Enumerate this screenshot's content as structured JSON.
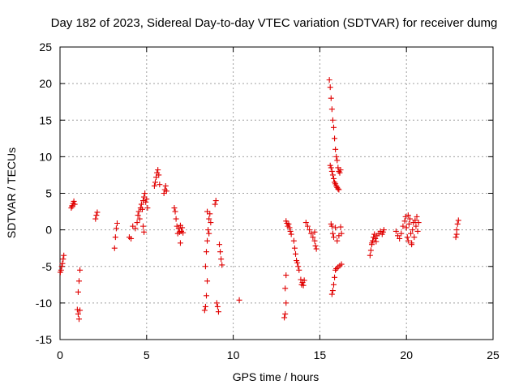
{
  "chart_data": {
    "type": "scatter",
    "title": "Day 182 of 2023, Sidereal Day-to-day VTEC variation (SDTVAR) for receiver dumg",
    "xlabel": "GPS time / hours",
    "ylabel": "SDTVAR / TECUs",
    "xlim": [
      0,
      25
    ],
    "ylim": [
      -15,
      25
    ],
    "xticks": [
      "0",
      "5",
      "10",
      "15",
      "20",
      "25"
    ],
    "yticks": [
      "-15",
      "-10",
      "-5",
      "0",
      "5",
      "10",
      "15",
      "20",
      "25"
    ],
    "grid": true,
    "marker": "plus",
    "color": "#e00000",
    "series": [
      {
        "name": "SDTVAR",
        "points": [
          [
            0.02,
            -5.8
          ],
          [
            0.06,
            -5.5
          ],
          [
            0.1,
            -5.0
          ],
          [
            0.14,
            -4.6
          ],
          [
            0.18,
            -4.0
          ],
          [
            0.22,
            -3.5
          ],
          [
            0.65,
            3.0
          ],
          [
            0.7,
            3.3
          ],
          [
            0.75,
            3.6
          ],
          [
            0.8,
            3.9
          ],
          [
            0.85,
            3.5
          ],
          [
            0.7,
            3.2
          ],
          [
            1.0,
            -10.9
          ],
          [
            1.05,
            -11.5
          ],
          [
            1.1,
            -12.2
          ],
          [
            1.15,
            -11.0
          ],
          [
            1.05,
            -8.5
          ],
          [
            1.1,
            -7.0
          ],
          [
            1.15,
            -5.5
          ],
          [
            2.05,
            1.5
          ],
          [
            2.1,
            2.0
          ],
          [
            2.15,
            2.4
          ],
          [
            3.15,
            -2.5
          ],
          [
            3.2,
            -1.0
          ],
          [
            3.25,
            0.2
          ],
          [
            3.3,
            0.9
          ],
          [
            4.0,
            -1.0
          ],
          [
            4.1,
            -1.2
          ],
          [
            4.2,
            0.5
          ],
          [
            4.35,
            0.2
          ],
          [
            4.45,
            1.0
          ],
          [
            4.5,
            2.0
          ],
          [
            4.55,
            2.5
          ],
          [
            4.6,
            1.5
          ],
          [
            4.65,
            3.0
          ],
          [
            4.7,
            3.5
          ],
          [
            4.75,
            2.8
          ],
          [
            4.8,
            4.0
          ],
          [
            4.85,
            4.5
          ],
          [
            4.9,
            5.0
          ],
          [
            4.95,
            3.8
          ],
          [
            5.0,
            4.2
          ],
          [
            5.05,
            3.0
          ],
          [
            4.8,
            0.5
          ],
          [
            4.85,
            -0.3
          ],
          [
            5.45,
            6.0
          ],
          [
            5.5,
            6.5
          ],
          [
            5.55,
            7.2
          ],
          [
            5.6,
            7.8
          ],
          [
            5.65,
            8.2
          ],
          [
            5.7,
            7.5
          ],
          [
            5.75,
            6.2
          ],
          [
            6.0,
            5.0
          ],
          [
            6.05,
            5.5
          ],
          [
            6.1,
            6.0
          ],
          [
            6.15,
            5.3
          ],
          [
            6.6,
            3.0
          ],
          [
            6.65,
            2.5
          ],
          [
            6.7,
            1.5
          ],
          [
            6.75,
            0.5
          ],
          [
            6.8,
            -0.5
          ],
          [
            6.85,
            0.2
          ],
          [
            6.9,
            -0.3
          ],
          [
            6.95,
            0.6
          ],
          [
            7.0,
            -0.2
          ],
          [
            7.05,
            0.3
          ],
          [
            7.1,
            -0.4
          ],
          [
            6.95,
            -1.8
          ],
          [
            8.35,
            -11.0
          ],
          [
            8.4,
            -10.5
          ],
          [
            8.45,
            -9.0
          ],
          [
            8.5,
            -7.0
          ],
          [
            8.4,
            -5.0
          ],
          [
            8.45,
            -3.0
          ],
          [
            8.5,
            -1.5
          ],
          [
            8.55,
            0.0
          ],
          [
            8.6,
            1.5
          ],
          [
            8.65,
            2.2
          ],
          [
            8.7,
            1.0
          ],
          [
            8.6,
            -0.5
          ],
          [
            8.5,
            2.5
          ],
          [
            8.95,
            3.5
          ],
          [
            9.0,
            4.0
          ],
          [
            9.05,
            -10.0
          ],
          [
            9.1,
            -10.5
          ],
          [
            9.15,
            -11.2
          ],
          [
            9.2,
            -2.0
          ],
          [
            9.25,
            -3.0
          ],
          [
            9.3,
            -4.0
          ],
          [
            9.35,
            -4.8
          ],
          [
            10.35,
            -9.6
          ],
          [
            12.95,
            -12.0
          ],
          [
            13.0,
            -11.5
          ],
          [
            13.05,
            -10.0
          ],
          [
            13.0,
            -8.0
          ],
          [
            13.05,
            -6.2
          ],
          [
            13.05,
            1.2
          ],
          [
            13.1,
            0.9
          ],
          [
            13.15,
            0.5
          ],
          [
            13.2,
            0.8
          ],
          [
            13.25,
            0.3
          ],
          [
            13.3,
            -0.2
          ],
          [
            13.35,
            -0.6
          ],
          [
            13.5,
            -1.5
          ],
          [
            13.55,
            -2.5
          ],
          [
            13.6,
            -3.3
          ],
          [
            13.65,
            -4.2
          ],
          [
            13.7,
            -4.5
          ],
          [
            13.75,
            -5.0
          ],
          [
            13.8,
            -5.5
          ],
          [
            13.9,
            -6.8
          ],
          [
            13.95,
            -7.5
          ],
          [
            14.0,
            -7.2
          ],
          [
            14.05,
            -7.6
          ],
          [
            14.1,
            -6.9
          ],
          [
            14.2,
            1.0
          ],
          [
            14.3,
            0.5
          ],
          [
            14.4,
            0.0
          ],
          [
            14.5,
            -0.5
          ],
          [
            14.6,
            -1.0
          ],
          [
            14.7,
            -1.5
          ],
          [
            14.75,
            -2.2
          ],
          [
            14.8,
            -2.6
          ],
          [
            14.7,
            -0.3
          ],
          [
            15.55,
            20.5
          ],
          [
            15.6,
            19.5
          ],
          [
            15.65,
            18.0
          ],
          [
            15.7,
            16.5
          ],
          [
            15.75,
            15.0
          ],
          [
            15.8,
            14.0
          ],
          [
            15.85,
            12.5
          ],
          [
            15.9,
            11.0
          ],
          [
            15.95,
            10.0
          ],
          [
            16.0,
            9.5
          ],
          [
            15.6,
            8.8
          ],
          [
            15.65,
            8.5
          ],
          [
            15.7,
            8.0
          ],
          [
            15.75,
            7.5
          ],
          [
            15.8,
            7.0
          ],
          [
            15.85,
            6.5
          ],
          [
            15.9,
            6.3
          ],
          [
            15.95,
            6.0
          ],
          [
            16.0,
            5.8
          ],
          [
            16.05,
            5.6
          ],
          [
            16.1,
            5.5
          ],
          [
            16.05,
            8.5
          ],
          [
            16.1,
            8.0
          ],
          [
            16.15,
            7.8
          ],
          [
            16.2,
            8.2
          ],
          [
            15.65,
            0.8
          ],
          [
            15.7,
            0.5
          ],
          [
            15.75,
            -0.5
          ],
          [
            15.8,
            -1.0
          ],
          [
            15.9,
            0.3
          ],
          [
            16.0,
            -1.5
          ],
          [
            16.1,
            -0.8
          ],
          [
            16.2,
            0.4
          ],
          [
            16.25,
            -0.5
          ],
          [
            15.7,
            -8.8
          ],
          [
            15.75,
            -8.3
          ],
          [
            15.8,
            -7.5
          ],
          [
            15.85,
            -6.5
          ],
          [
            15.9,
            -5.5
          ],
          [
            15.95,
            -5.3
          ],
          [
            16.05,
            -5.1
          ],
          [
            16.15,
            -4.9
          ],
          [
            16.25,
            -4.7
          ],
          [
            17.9,
            -3.5
          ],
          [
            17.95,
            -2.8
          ],
          [
            18.0,
            -2.0
          ],
          [
            18.05,
            -1.5
          ],
          [
            18.1,
            -1.0
          ],
          [
            18.15,
            -0.6
          ],
          [
            18.2,
            -1.2
          ],
          [
            18.3,
            -0.8
          ],
          [
            18.4,
            -0.5
          ],
          [
            18.5,
            -0.2
          ],
          [
            18.6,
            -0.6
          ],
          [
            18.65,
            -0.3
          ],
          [
            18.7,
            0.0
          ],
          [
            18.0,
            -1.8
          ],
          [
            18.25,
            -1.6
          ],
          [
            19.4,
            -0.2
          ],
          [
            19.5,
            -0.8
          ],
          [
            19.6,
            -1.2
          ],
          [
            19.7,
            -0.5
          ],
          [
            19.8,
            0.5
          ],
          [
            19.9,
            1.2
          ],
          [
            19.95,
            1.8
          ],
          [
            20.0,
            0.3
          ],
          [
            20.05,
            -1.0
          ],
          [
            20.1,
            -1.5
          ],
          [
            20.15,
            0.8
          ],
          [
            20.2,
            1.5
          ],
          [
            20.25,
            -0.5
          ],
          [
            20.3,
            -1.8
          ],
          [
            20.35,
            0.0
          ],
          [
            20.4,
            1.0
          ],
          [
            20.45,
            -1.0
          ],
          [
            20.5,
            1.3
          ],
          [
            20.55,
            0.5
          ],
          [
            20.6,
            1.8
          ],
          [
            20.65,
            -0.2
          ],
          [
            20.7,
            1.0
          ],
          [
            20.1,
            2.0
          ],
          [
            20.3,
            -2.0
          ],
          [
            22.85,
            -1.0
          ],
          [
            22.9,
            0.0
          ],
          [
            22.95,
            0.8
          ],
          [
            23.0,
            1.3
          ],
          [
            22.9,
            -0.6
          ]
        ]
      }
    ]
  }
}
